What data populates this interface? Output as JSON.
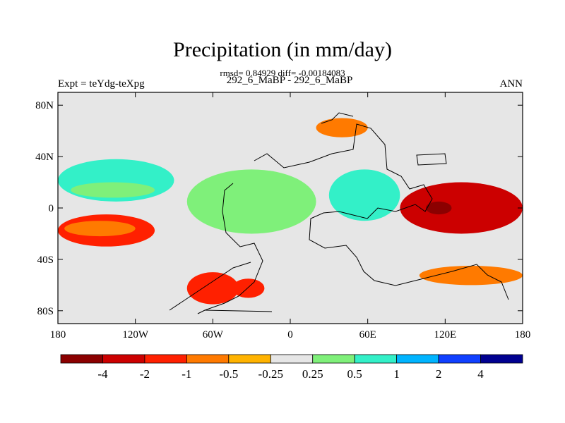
{
  "title": "Precipitation (in mm/day)",
  "stats_line": "rmsd= 0.84929 diff= -0.00184083",
  "case_line": "292_6_MaBP - 292_6_MaBP",
  "expt_label": "Expt = teYdg-teXpg",
  "season_label": "ANN",
  "chart_data": {
    "type": "heatmap",
    "title": "Precipitation (in mm/day)",
    "xlabel": "",
    "ylabel": "",
    "xlim": [
      -180,
      180
    ],
    "ylim": [
      -90,
      90
    ],
    "x_ticks": [
      {
        "value": -180,
        "label": "180"
      },
      {
        "value": -120,
        "label": "120W"
      },
      {
        "value": -60,
        "label": "60W"
      },
      {
        "value": 0,
        "label": "0"
      },
      {
        "value": 60,
        "label": "60E"
      },
      {
        "value": 120,
        "label": "120E"
      },
      {
        "value": 180,
        "label": "180"
      }
    ],
    "y_ticks": [
      {
        "value": 80,
        "label": "80N"
      },
      {
        "value": 40,
        "label": "40N"
      },
      {
        "value": 0,
        "label": "0"
      },
      {
        "value": -40,
        "label": "40S"
      },
      {
        "value": -80,
        "label": "80S"
      }
    ],
    "colorbar": {
      "labels": [
        "-4",
        "-2",
        "-1",
        "-0.5",
        "-0.25",
        "0.25",
        "0.5",
        "1",
        "2",
        "4"
      ],
      "colors": [
        "#8b0000",
        "#cc0000",
        "#ff2000",
        "#ff7a00",
        "#ffb300",
        "#e6e6e6",
        "#7ff07a",
        "#33f0c8",
        "#00b4ff",
        "#1040ff",
        "#000090"
      ]
    },
    "background_color": "#e6e6e6",
    "features": [
      {
        "name": "north-pacific-positive-band",
        "level": 2,
        "lon": [
          -180,
          -90
        ],
        "lat": [
          5,
          38
        ]
      },
      {
        "name": "north-pacific-core",
        "level": 1,
        "lon": [
          -170,
          -105
        ],
        "lat": [
          8,
          20
        ]
      },
      {
        "name": "south-pacific-negative-band",
        "level": -2,
        "lon": [
          -180,
          -105
        ],
        "lat": [
          -30,
          -5
        ]
      },
      {
        "name": "south-pacific-core",
        "level": -1,
        "lon": [
          -175,
          -120
        ],
        "lat": [
          -22,
          -10
        ]
      },
      {
        "name": "atlantic-positive-band",
        "level": 1,
        "lon": [
          -80,
          20
        ],
        "lat": [
          -20,
          30
        ]
      },
      {
        "name": "indian-ocean-positive",
        "level": 2,
        "lon": [
          30,
          85
        ],
        "lat": [
          -10,
          30
        ]
      },
      {
        "name": "west-pacific-negative",
        "level": -3,
        "lon": [
          85,
          180
        ],
        "lat": [
          -20,
          20
        ]
      },
      {
        "name": "west-pacific-core",
        "level": -4,
        "lon": [
          105,
          125
        ],
        "lat": [
          -5,
          5
        ]
      },
      {
        "name": "south-america-negative",
        "level": -2,
        "lon": [
          -80,
          -40
        ],
        "lat": [
          -75,
          -50
        ]
      },
      {
        "name": "south-atlantic-negative",
        "level": -2,
        "lon": [
          -45,
          -20
        ],
        "lat": [
          -70,
          -55
        ]
      },
      {
        "name": "southern-ocean-negative",
        "level": -1,
        "lon": [
          100,
          180
        ],
        "lat": [
          -60,
          -45
        ]
      },
      {
        "name": "eurasia-negative",
        "level": -1,
        "lon": [
          20,
          60
        ],
        "lat": [
          55,
          70
        ]
      }
    ]
  }
}
